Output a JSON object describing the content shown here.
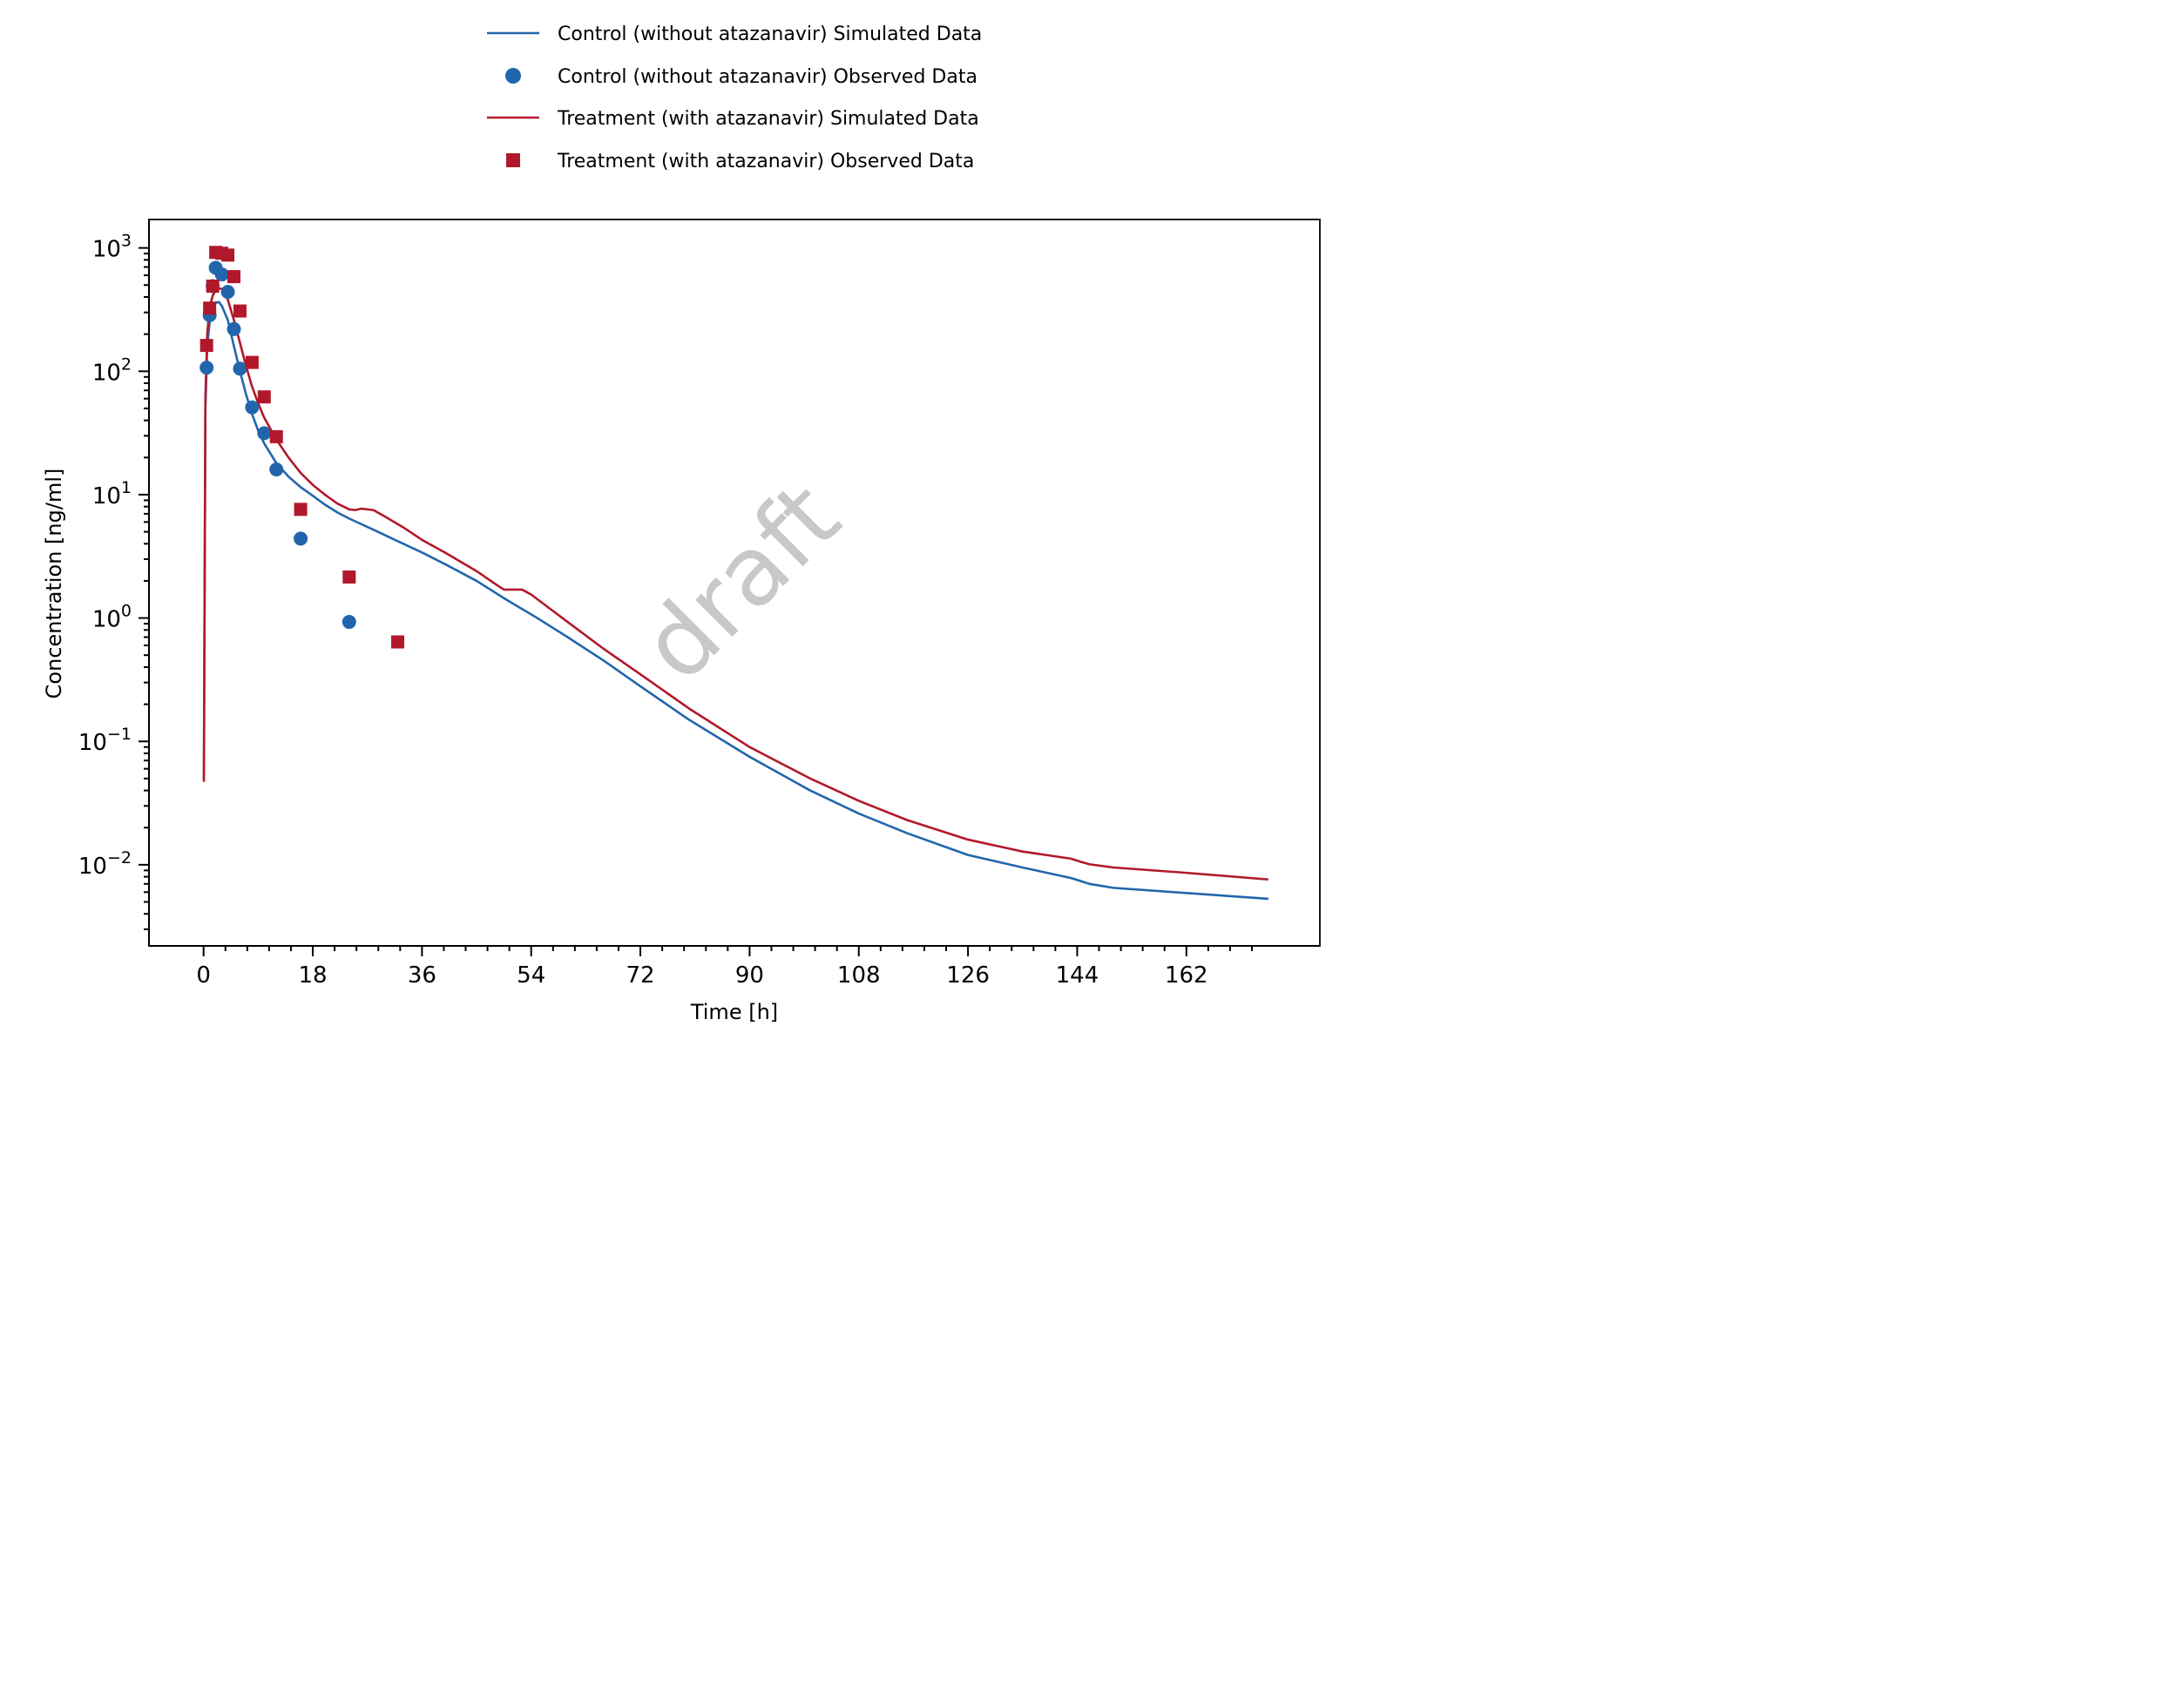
{
  "chart_data": {
    "type": "line",
    "xlabel": "Time [h]",
    "ylabel": "Concentration [ng/ml]",
    "xlim": [
      -9,
      184
    ],
    "ylim": [
      0.0022,
      1700
    ],
    "yscale": "log",
    "x_ticks": [
      0,
      18,
      36,
      54,
      72,
      90,
      108,
      126,
      144,
      162
    ],
    "y_ticks": [
      {
        "value": 1000,
        "base": "10",
        "exp": "3"
      },
      {
        "value": 100,
        "base": "10",
        "exp": "2"
      },
      {
        "value": 10,
        "base": "10",
        "exp": "1"
      },
      {
        "value": 1,
        "base": "10",
        "exp": "0"
      },
      {
        "value": 0.1,
        "base": "10",
        "exp": "−1"
      },
      {
        "value": 0.01,
        "base": "10",
        "exp": "−2"
      }
    ],
    "grid": false,
    "legend_position": "top-center",
    "watermark": "draft",
    "series": [
      {
        "name": "Control (without atazanavir) Simulated Data",
        "kind": "line",
        "color": "#2166ac",
        "points": [
          [
            0.05,
            0.05
          ],
          [
            0.3,
            50
          ],
          [
            0.6,
            160
          ],
          [
            1.0,
            250
          ],
          [
            1.5,
            320
          ],
          [
            2.0,
            360
          ],
          [
            2.5,
            365
          ],
          [
            3.0,
            340
          ],
          [
            4.0,
            260
          ],
          [
            5.0,
            160
          ],
          [
            6.0,
            100
          ],
          [
            7.0,
            65
          ],
          [
            8.0,
            45
          ],
          [
            9.0,
            33
          ],
          [
            10.0,
            26
          ],
          [
            12.0,
            18
          ],
          [
            14.0,
            14
          ],
          [
            16.0,
            11.5
          ],
          [
            18.0,
            9.8
          ],
          [
            20.0,
            8.3
          ],
          [
            22.0,
            7.2
          ],
          [
            24.0,
            6.4
          ],
          [
            28.0,
            5.2
          ],
          [
            32.0,
            4.2
          ],
          [
            36.0,
            3.4
          ],
          [
            40.0,
            2.7
          ],
          [
            45.0,
            2.0
          ],
          [
            50.0,
            1.4
          ],
          [
            55.0,
            1.0
          ],
          [
            60.0,
            0.7
          ],
          [
            66.0,
            0.45
          ],
          [
            72.0,
            0.28
          ],
          [
            80.0,
            0.15
          ],
          [
            90.0,
            0.075
          ],
          [
            100.0,
            0.04
          ],
          [
            108.0,
            0.026
          ],
          [
            116.0,
            0.018
          ],
          [
            126.0,
            0.012
          ],
          [
            135.0,
            0.0095
          ],
          [
            143.0,
            0.0078
          ],
          [
            144.5,
            0.0074
          ],
          [
            146.0,
            0.007
          ],
          [
            150.0,
            0.0065
          ],
          [
            162.0,
            0.0059
          ],
          [
            175.5,
            0.0053
          ]
        ]
      },
      {
        "name": "Control (without atazanavir) Observed Data",
        "kind": "scatter",
        "marker": "circle",
        "color": "#2166ac",
        "points": [
          [
            0.5,
            107
          ],
          [
            1.0,
            285
          ],
          [
            1.5,
            490
          ],
          [
            2.0,
            690
          ],
          [
            3.0,
            610
          ],
          [
            4.0,
            440
          ],
          [
            5.0,
            220
          ],
          [
            6.0,
            105
          ],
          [
            8.0,
            51
          ],
          [
            10.0,
            31.5
          ],
          [
            12.0,
            16
          ],
          [
            16.0,
            4.4
          ],
          [
            24.0,
            0.93
          ]
        ]
      },
      {
        "name": "Treatment (with atazanavir) Simulated Data",
        "kind": "line",
        "color": "#b2182b",
        "points": [
          [
            0.05,
            0.047
          ],
          [
            0.3,
            60
          ],
          [
            0.6,
            200
          ],
          [
            1.0,
            330
          ],
          [
            1.5,
            410
          ],
          [
            2.0,
            455
          ],
          [
            2.5,
            470
          ],
          [
            3.0,
            465
          ],
          [
            4.0,
            380
          ],
          [
            5.0,
            260
          ],
          [
            6.0,
            170
          ],
          [
            7.0,
            110
          ],
          [
            8.0,
            75
          ],
          [
            9.0,
            55
          ],
          [
            10.0,
            42
          ],
          [
            12.0,
            28
          ],
          [
            14.0,
            20
          ],
          [
            16.0,
            15
          ],
          [
            18.0,
            12
          ],
          [
            20.0,
            10
          ],
          [
            22.0,
            8.5
          ],
          [
            24.0,
            7.6
          ],
          [
            25.0,
            7.5
          ],
          [
            26.0,
            7.7
          ],
          [
            28.0,
            7.5
          ],
          [
            30.0,
            6.6
          ],
          [
            33.0,
            5.4
          ],
          [
            36.0,
            4.3
          ],
          [
            40.0,
            3.35
          ],
          [
            45.0,
            2.4
          ],
          [
            48.0,
            1.9
          ],
          [
            49.5,
            1.7
          ],
          [
            51.0,
            1.7
          ],
          [
            52.5,
            1.7
          ],
          [
            54.0,
            1.55
          ],
          [
            57.0,
            1.2
          ],
          [
            60.0,
            0.93
          ],
          [
            66.0,
            0.56
          ],
          [
            72.0,
            0.35
          ],
          [
            80.0,
            0.185
          ],
          [
            90.0,
            0.09
          ],
          [
            100.0,
            0.05
          ],
          [
            108.0,
            0.033
          ],
          [
            116.0,
            0.023
          ],
          [
            126.0,
            0.016
          ],
          [
            135.0,
            0.0128
          ],
          [
            143.0,
            0.0112
          ],
          [
            144.5,
            0.0106
          ],
          [
            146.0,
            0.0101
          ],
          [
            150.0,
            0.0095
          ],
          [
            162.0,
            0.0086
          ],
          [
            175.5,
            0.0076
          ]
        ]
      },
      {
        "name": "Treatment (with atazanavir) Observed Data",
        "kind": "scatter",
        "marker": "square",
        "color": "#b2182b",
        "points": [
          [
            0.5,
            162
          ],
          [
            1.0,
            325
          ],
          [
            1.5,
            490
          ],
          [
            2.0,
            920
          ],
          [
            3.0,
            905
          ],
          [
            4.0,
            875
          ],
          [
            5.0,
            585
          ],
          [
            6.0,
            308
          ],
          [
            8.0,
            118
          ],
          [
            10.0,
            62
          ],
          [
            12.0,
            29.5
          ],
          [
            16.0,
            7.6
          ],
          [
            24.0,
            2.15
          ],
          [
            32.0,
            0.64
          ]
        ]
      }
    ]
  }
}
